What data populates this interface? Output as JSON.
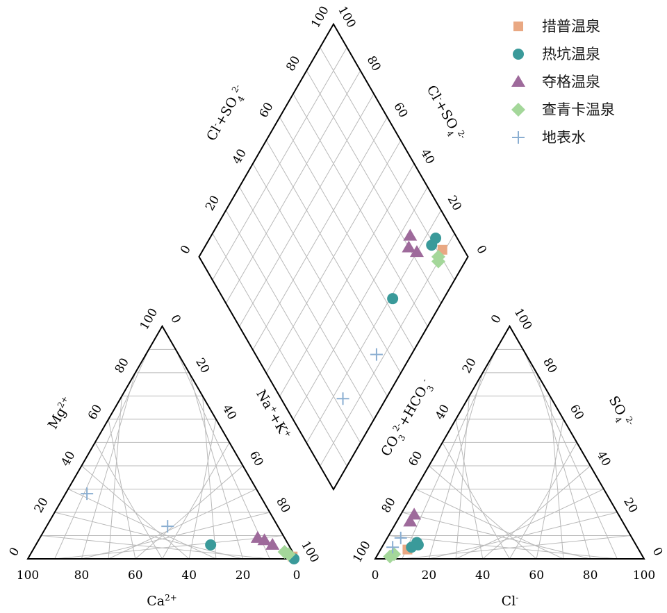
{
  "chart_data": {
    "type": "scatter",
    "title": "",
    "legend_position": "top-right",
    "grid": true,
    "series": [
      {
        "name": "措普温泉",
        "marker": "square",
        "color": "#e9a883"
      },
      {
        "name": "热坑温泉",
        "marker": "circle",
        "color": "#3a9a9a"
      },
      {
        "name": "夺格温泉",
        "marker": "triangle",
        "color": "#9e6a9b"
      },
      {
        "name": "查青卡温泉",
        "marker": "diamond",
        "color": "#a4d79a"
      },
      {
        "name": "地表水",
        "marker": "plus",
        "color": "#8aaed1"
      }
    ],
    "ticks": [
      "0",
      "20",
      "40",
      "60",
      "80",
      "100"
    ],
    "axes": {
      "ca": {
        "label": "Ca",
        "sup": "2+"
      },
      "mg": {
        "label": "Mg",
        "sup": "2+"
      },
      "nak": {
        "label1": "Na",
        "sup1": "+",
        "label2": "+K",
        "sup2": "+"
      },
      "cl": {
        "label": "Cl",
        "sup": "-"
      },
      "so4": {
        "label": "SO",
        "sub": "4",
        "sup": "2-"
      },
      "co3": {
        "label1": "CO",
        "sub1": "3",
        "sup1": "2-",
        "label2": "+HCO",
        "sub2": "3",
        "sup2": "-"
      },
      "clso4": {
        "label1": "Cl",
        "sup1": "-",
        "label2": "+SO",
        "sub2": "4",
        "sup2": "2-"
      }
    },
    "cation_points": [
      {
        "series": "措普温泉",
        "ca": 1,
        "mg": 1
      },
      {
        "series": "热坑温泉",
        "ca": 29,
        "mg": 6
      },
      {
        "series": "热坑温泉",
        "ca": 1,
        "mg": 0
      },
      {
        "series": "夺格温泉",
        "ca": 10,
        "mg": 9
      },
      {
        "series": "夺格温泉",
        "ca": 8,
        "mg": 8
      },
      {
        "series": "夺格温泉",
        "ca": 6,
        "mg": 6
      },
      {
        "series": "查青卡温泉",
        "ca": 3,
        "mg": 3
      },
      {
        "series": "查青卡温泉",
        "ca": 2,
        "mg": 2
      },
      {
        "series": "地表水",
        "ca": 64,
        "mg": 28
      },
      {
        "series": "地表水",
        "ca": 41,
        "mg": 14
      }
    ],
    "anion_points": [
      {
        "series": "措普温泉",
        "cl": 10,
        "so4": 4
      },
      {
        "series": "热坑温泉",
        "cl": 11,
        "so4": 5
      },
      {
        "series": "热坑温泉",
        "cl": 13,
        "so4": 6
      },
      {
        "series": "热坑温泉",
        "cl": 12,
        "so4": 7
      },
      {
        "series": "夺格温泉",
        "cl": 5,
        "so4": 19
      },
      {
        "series": "夺格温泉",
        "cl": 5,
        "so4": 16
      },
      {
        "series": "查青卡温泉",
        "cl": 5,
        "so4": 1
      },
      {
        "series": "查青卡温泉",
        "cl": 6,
        "so4": 2
      },
      {
        "series": "地表水",
        "cl": 5,
        "so4": 9
      },
      {
        "series": "地表水",
        "cl": 4,
        "so4": 5
      }
    ],
    "diamond_points": [
      {
        "series": "措普温泉",
        "nak": 92,
        "clso4": 11
      },
      {
        "series": "热坑温泉",
        "nak": 63,
        "clso4": 19
      },
      {
        "series": "热坑温泉",
        "nak": 89,
        "clso4": 16
      },
      {
        "series": "热坑温泉",
        "nak": 92,
        "clso4": 16
      },
      {
        "series": "夺格温泉",
        "nak": 83,
        "clso4": 26
      },
      {
        "series": "夺格温泉",
        "nak": 80,
        "clso4": 24
      },
      {
        "series": "夺格温泉",
        "nak": 82,
        "clso4": 20
      },
      {
        "series": "查青卡温泉",
        "nak": 88,
        "clso4": 10
      },
      {
        "series": "查青卡温泉",
        "nak": 89,
        "clso4": 11
      },
      {
        "series": "地表水",
        "nak": 23,
        "clso4": 16
      },
      {
        "series": "地表水",
        "nak": 45,
        "clso4": 13
      }
    ]
  }
}
